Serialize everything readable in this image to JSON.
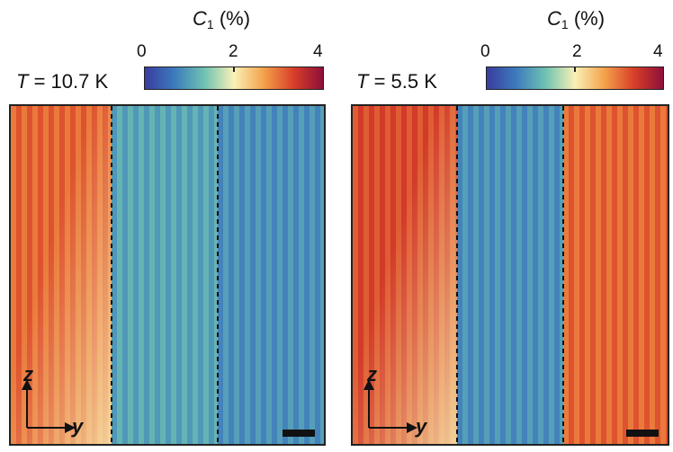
{
  "colorbar": {
    "title_var": "C",
    "title_sub": "1",
    "title_unit": "(%)",
    "ticks": [
      "0",
      "2",
      "4"
    ],
    "range": [
      0,
      4
    ],
    "colors": [
      "#3a3c9e",
      "#3d7bbd",
      "#6ec2b2",
      "#f9f1b6",
      "#f4a24b",
      "#d93f28",
      "#8e0f3a"
    ]
  },
  "panels": [
    {
      "temperature_var": "T",
      "temperature_text": "= 10.7 K",
      "stripe_period": 12,
      "domain_values": [
        3.2,
        1.2,
        1.0
      ],
      "axis_z": "z",
      "axis_y": "y"
    },
    {
      "temperature_var": "T",
      "temperature_text": "= 5.5 K",
      "stripe_period": 12,
      "domain_values": [
        3.4,
        1.0,
        3.2
      ],
      "axis_z": "z",
      "axis_y": "y"
    }
  ]
}
